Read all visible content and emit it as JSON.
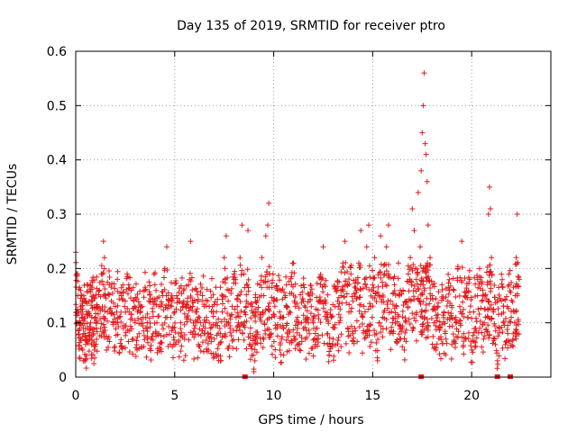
{
  "chart_data": {
    "type": "scatter",
    "title": "Day 135 of 2019, SRMTID for receiver ptro",
    "xlabel": "GPS time / hours",
    "ylabel": "SRMTID / TECUs",
    "xlim": [
      0,
      24
    ],
    "ylim": [
      0,
      0.6
    ],
    "xticks": [
      "0",
      "5",
      "10",
      "15",
      "20"
    ],
    "yticks": [
      "0",
      "0.1",
      "0.2",
      "0.3",
      "0.4",
      "0.5",
      "0.6"
    ],
    "grid": true,
    "marker": "+",
    "color": "#e41a1c",
    "bottom_markers_x": [
      8.55,
      17.45,
      21.3,
      21.95
    ],
    "series": [
      {
        "name": "SRMTID",
        "points": [
          [
            0.0,
            0.23
          ],
          [
            0.05,
            0.19
          ],
          [
            0.1,
            0.15
          ],
          [
            0.15,
            0.12
          ],
          [
            0.2,
            0.09
          ],
          [
            0.25,
            0.07
          ],
          [
            0.3,
            0.11
          ],
          [
            0.35,
            0.05
          ],
          [
            0.4,
            0.08
          ],
          [
            0.45,
            0.03
          ],
          [
            0.5,
            0.06
          ],
          [
            0.55,
            0.04
          ],
          [
            0.6,
            0.09
          ],
          [
            0.65,
            0.12
          ],
          [
            0.7,
            0.07
          ],
          [
            0.75,
            0.1
          ],
          [
            0.8,
            0.06
          ],
          [
            0.85,
            0.14
          ],
          [
            0.9,
            0.08
          ],
          [
            0.95,
            0.05
          ],
          [
            1.0,
            0.11
          ],
          [
            1.05,
            0.09
          ],
          [
            1.1,
            0.13
          ],
          [
            1.2,
            0.16
          ],
          [
            1.3,
            0.19
          ],
          [
            1.4,
            0.25
          ],
          [
            1.45,
            0.22
          ],
          [
            1.5,
            0.15
          ],
          [
            1.6,
            0.12
          ],
          [
            1.7,
            0.17
          ],
          [
            1.8,
            0.14
          ],
          [
            1.9,
            0.1
          ],
          [
            2.0,
            0.13
          ],
          [
            2.1,
            0.18
          ],
          [
            2.2,
            0.11
          ],
          [
            2.3,
            0.15
          ],
          [
            2.4,
            0.09
          ],
          [
            2.5,
            0.14
          ],
          [
            2.6,
            0.19
          ],
          [
            2.7,
            0.12
          ],
          [
            2.8,
            0.16
          ],
          [
            2.9,
            0.07
          ],
          [
            3.0,
            0.1
          ],
          [
            3.1,
            0.05
          ],
          [
            3.2,
            0.08
          ],
          [
            3.3,
            0.13
          ],
          [
            3.4,
            0.11
          ],
          [
            3.5,
            0.16
          ],
          [
            3.6,
            0.09
          ],
          [
            3.7,
            0.14
          ],
          [
            3.8,
            0.07
          ],
          [
            3.9,
            0.12
          ],
          [
            4.0,
            0.17
          ],
          [
            4.1,
            0.1
          ],
          [
            4.2,
            0.08
          ],
          [
            4.3,
            0.13
          ],
          [
            4.4,
            0.15
          ],
          [
            4.5,
            0.2
          ],
          [
            4.6,
            0.24
          ],
          [
            4.7,
            0.14
          ],
          [
            4.8,
            0.11
          ],
          [
            4.9,
            0.09
          ],
          [
            5.0,
            0.12
          ],
          [
            5.1,
            0.15
          ],
          [
            5.2,
            0.08
          ],
          [
            5.3,
            0.1
          ],
          [
            5.4,
            0.13
          ],
          [
            5.5,
            0.07
          ],
          [
            5.6,
            0.11
          ],
          [
            5.7,
            0.17
          ],
          [
            5.8,
            0.25
          ],
          [
            5.9,
            0.14
          ],
          [
            6.0,
            0.09
          ],
          [
            6.1,
            0.12
          ],
          [
            6.2,
            0.06
          ],
          [
            6.3,
            0.1
          ],
          [
            6.4,
            0.15
          ],
          [
            6.5,
            0.08
          ],
          [
            6.6,
            0.11
          ],
          [
            6.7,
            0.05
          ],
          [
            6.8,
            0.09
          ],
          [
            6.9,
            0.13
          ],
          [
            7.0,
            0.07
          ],
          [
            7.1,
            0.1
          ],
          [
            7.2,
            0.04
          ],
          [
            7.3,
            0.08
          ],
          [
            7.4,
            0.12
          ],
          [
            7.5,
            0.22
          ],
          [
            7.6,
            0.26
          ],
          [
            7.7,
            0.14
          ],
          [
            7.8,
            0.09
          ],
          [
            7.9,
            0.13
          ],
          [
            8.0,
            0.18
          ],
          [
            8.1,
            0.11
          ],
          [
            8.2,
            0.15
          ],
          [
            8.3,
            0.22
          ],
          [
            8.4,
            0.28
          ],
          [
            8.5,
            0.19
          ],
          [
            8.6,
            0.13
          ],
          [
            8.7,
            0.27
          ],
          [
            8.8,
            0.08
          ],
          [
            8.9,
            0.04
          ],
          [
            9.0,
            0.01
          ],
          [
            9.05,
            0.03
          ],
          [
            9.1,
            0.07
          ],
          [
            9.2,
            0.12
          ],
          [
            9.3,
            0.17
          ],
          [
            9.4,
            0.22
          ],
          [
            9.5,
            0.15
          ],
          [
            9.6,
            0.26
          ],
          [
            9.7,
            0.28
          ],
          [
            9.75,
            0.32
          ],
          [
            9.8,
            0.19
          ],
          [
            9.9,
            0.11
          ],
          [
            10.0,
            0.14
          ],
          [
            10.1,
            0.09
          ],
          [
            10.2,
            0.16
          ],
          [
            10.3,
            0.12
          ],
          [
            10.4,
            0.07
          ],
          [
            10.5,
            0.11
          ],
          [
            10.6,
            0.15
          ],
          [
            10.7,
            0.08
          ],
          [
            10.8,
            0.12
          ],
          [
            10.9,
            0.17
          ],
          [
            11.0,
            0.21
          ],
          [
            11.1,
            0.13
          ],
          [
            11.2,
            0.09
          ],
          [
            11.3,
            0.05
          ],
          [
            11.4,
            0.1
          ],
          [
            11.5,
            0.14
          ],
          [
            11.6,
            0.07
          ],
          [
            11.7,
            0.11
          ],
          [
            11.8,
            0.08
          ],
          [
            11.9,
            0.13
          ],
          [
            12.0,
            0.1
          ],
          [
            12.1,
            0.06
          ],
          [
            12.2,
            0.09
          ],
          [
            12.3,
            0.14
          ],
          [
            12.4,
            0.18
          ],
          [
            12.5,
            0.24
          ],
          [
            12.6,
            0.12
          ],
          [
            12.7,
            0.08
          ],
          [
            12.8,
            0.04
          ],
          [
            12.9,
            0.11
          ],
          [
            13.0,
            0.07
          ],
          [
            13.1,
            0.13
          ],
          [
            13.2,
            0.16
          ],
          [
            13.3,
            0.1
          ],
          [
            13.4,
            0.15
          ],
          [
            13.5,
            0.21
          ],
          [
            13.6,
            0.25
          ],
          [
            13.7,
            0.17
          ],
          [
            13.8,
            0.12
          ],
          [
            13.9,
            0.19
          ],
          [
            14.0,
            0.14
          ],
          [
            14.1,
            0.09
          ],
          [
            14.2,
            0.16
          ],
          [
            14.3,
            0.21
          ],
          [
            14.4,
            0.27
          ],
          [
            14.5,
            0.11
          ],
          [
            14.6,
            0.18
          ],
          [
            14.7,
            0.24
          ],
          [
            14.8,
            0.28
          ],
          [
            14.9,
            0.13
          ],
          [
            15.0,
            0.17
          ],
          [
            15.1,
            0.22
          ],
          [
            15.2,
            0.08
          ],
          [
            15.3,
            0.15
          ],
          [
            15.4,
            0.26
          ],
          [
            15.5,
            0.11
          ],
          [
            15.6,
            0.19
          ],
          [
            15.7,
            0.24
          ],
          [
            15.8,
            0.28
          ],
          [
            15.9,
            0.14
          ],
          [
            16.0,
            0.1
          ],
          [
            16.1,
            0.17
          ],
          [
            16.2,
            0.13
          ],
          [
            16.3,
            0.21
          ],
          [
            16.4,
            0.16
          ],
          [
            16.5,
            0.09
          ],
          [
            16.6,
            0.05
          ],
          [
            16.7,
            0.14
          ],
          [
            16.8,
            0.19
          ],
          [
            16.9,
            0.22
          ],
          [
            17.0,
            0.31
          ],
          [
            17.1,
            0.27
          ],
          [
            17.2,
            0.18
          ],
          [
            17.3,
            0.34
          ],
          [
            17.4,
            0.24
          ],
          [
            17.45,
            0.38
          ],
          [
            17.5,
            0.45
          ],
          [
            17.55,
            0.5
          ],
          [
            17.6,
            0.56
          ],
          [
            17.65,
            0.43
          ],
          [
            17.7,
            0.41
          ],
          [
            17.75,
            0.36
          ],
          [
            17.8,
            0.28
          ],
          [
            17.9,
            0.22
          ],
          [
            18.0,
            0.15
          ],
          [
            18.1,
            0.1
          ],
          [
            18.2,
            0.05
          ],
          [
            18.3,
            0.13
          ],
          [
            18.4,
            0.09
          ],
          [
            18.5,
            0.17
          ],
          [
            18.6,
            0.12
          ],
          [
            18.7,
            0.07
          ],
          [
            18.8,
            0.14
          ],
          [
            18.9,
            0.11
          ],
          [
            19.0,
            0.06
          ],
          [
            19.1,
            0.16
          ],
          [
            19.2,
            0.1
          ],
          [
            19.3,
            0.2
          ],
          [
            19.4,
            0.13
          ],
          [
            19.5,
            0.25
          ],
          [
            19.6,
            0.08
          ],
          [
            19.7,
            0.15
          ],
          [
            19.8,
            0.11
          ],
          [
            19.9,
            0.18
          ],
          [
            20.0,
            0.05
          ],
          [
            20.1,
            0.12
          ],
          [
            20.2,
            0.09
          ],
          [
            20.3,
            0.15
          ],
          [
            20.4,
            0.2
          ],
          [
            20.5,
            0.14
          ],
          [
            20.6,
            0.07
          ],
          [
            20.7,
            0.11
          ],
          [
            20.8,
            0.17
          ],
          [
            20.85,
            0.3
          ],
          [
            20.9,
            0.35
          ],
          [
            20.95,
            0.31
          ],
          [
            21.0,
            0.22
          ],
          [
            21.1,
            0.12
          ],
          [
            21.2,
            0.06
          ],
          [
            21.3,
            0.03
          ],
          [
            21.4,
            0.09
          ],
          [
            21.5,
            0.14
          ],
          [
            21.6,
            0.1
          ],
          [
            21.7,
            0.06
          ],
          [
            21.8,
            0.13
          ],
          [
            21.9,
            0.17
          ],
          [
            22.0,
            0.11
          ],
          [
            22.1,
            0.08
          ],
          [
            22.2,
            0.15
          ],
          [
            22.25,
            0.22
          ],
          [
            22.3,
            0.3
          ],
          [
            22.4,
            0.18
          ]
        ]
      }
    ]
  }
}
